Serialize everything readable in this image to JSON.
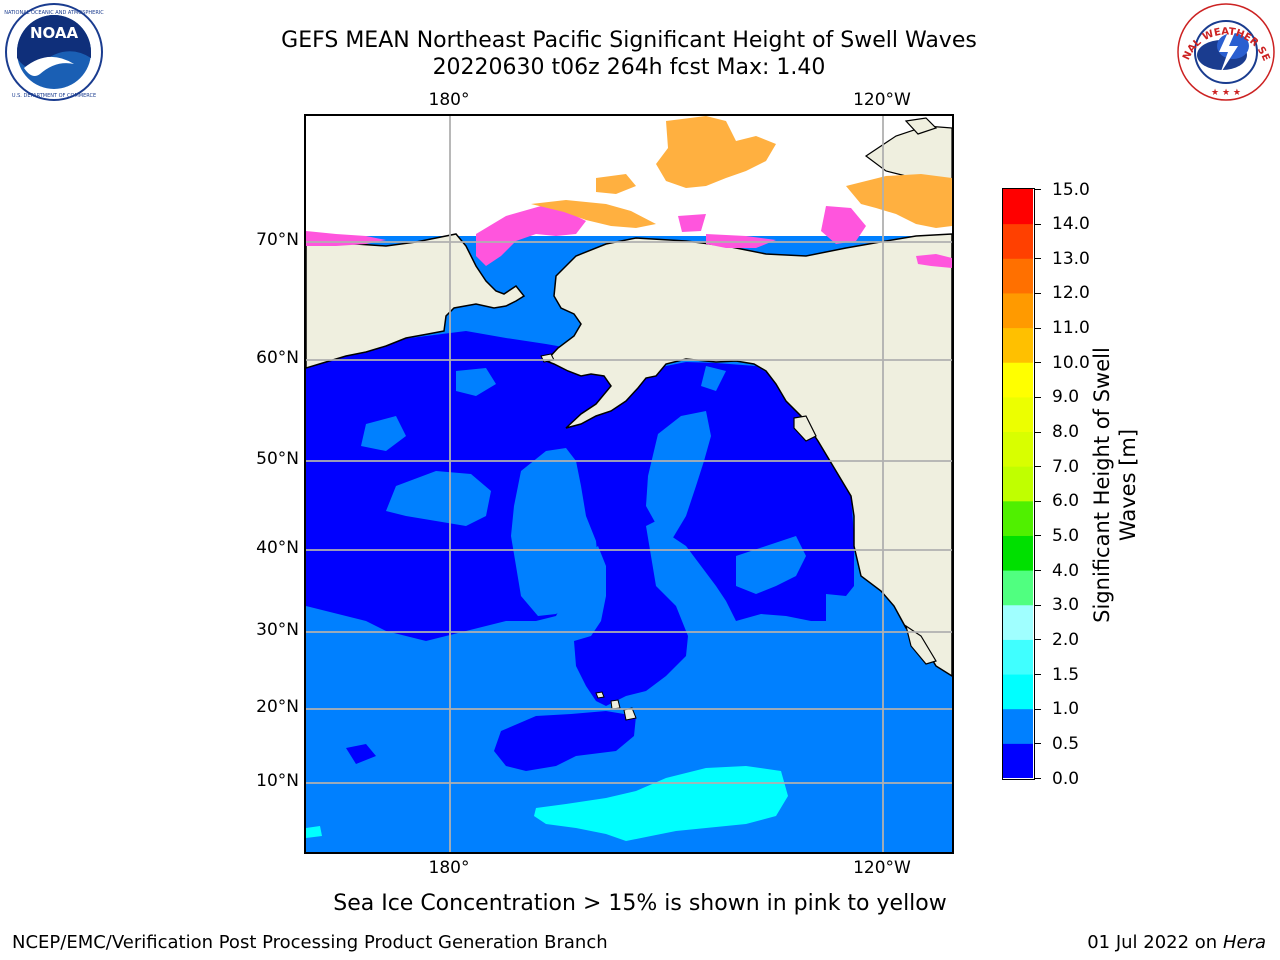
{
  "header": {
    "title_line1": "GEFS MEAN Northeast Pacific Significant Height of Swell Waves",
    "title_line2": "20220630 t06z 264h fcst   Max: 1.40"
  },
  "logos": {
    "left": {
      "text": "NOAA",
      "ring_text": "NATIONAL OCEANIC AND ATMOSPHERIC ADMINISTRATION · U.S. DEPARTMENT OF COMMERCE"
    },
    "right": {
      "ring_text": "NATIONAL WEATHER SERVICE"
    }
  },
  "map": {
    "lon_labels_top": [
      "180°",
      "120°W"
    ],
    "lon_labels_bottom": [
      "180°",
      "120°W"
    ],
    "lat_labels": [
      "70°N",
      "60°N",
      "50°N",
      "40°N",
      "30°N",
      "20°N",
      "10°N"
    ],
    "colors": {
      "land": "#efefdf",
      "ocean_0_0_5": "#0000ff",
      "ocean_0_5_1": "#0080ff",
      "ocean_1_1_5": "#00ffff",
      "ice_pink": "#ff55dd",
      "ice_orange": "#ffb040",
      "grid": "#b0b0b0"
    }
  },
  "colorbar": {
    "label": "Significant Height of Swell Waves [m]",
    "label_line1": "Significant Height of Swell",
    "label_line2": "Waves [m]",
    "ticks": [
      "15.0",
      "14.0",
      "13.0",
      "12.0",
      "11.0",
      "10.0",
      "9.0",
      "8.0",
      "7.0",
      "6.0",
      "5.0",
      "4.0",
      "3.0",
      "2.0",
      "1.5",
      "1.0",
      "0.5",
      "0.0"
    ],
    "levels": [
      {
        "range": "0.0-0.5",
        "color": "#0000ff"
      },
      {
        "range": "0.5-1.0",
        "color": "#0080ff"
      },
      {
        "range": "1.0-1.5",
        "color": "#00ffff"
      },
      {
        "range": "1.5-2.0",
        "color": "#40ffff"
      },
      {
        "range": "2.0-3.0",
        "color": "#a0ffff"
      },
      {
        "range": "3.0-4.0",
        "color": "#50ff80"
      },
      {
        "range": "4.0-5.0",
        "color": "#00e000"
      },
      {
        "range": "5.0-6.0",
        "color": "#50f000"
      },
      {
        "range": "6.0-7.0",
        "color": "#c0ff00"
      },
      {
        "range": "7.0-8.0",
        "color": "#d8ff00"
      },
      {
        "range": "8.0-9.0",
        "color": "#ecff00"
      },
      {
        "range": "9.0-10.0",
        "color": "#ffff00"
      },
      {
        "range": "10.0-11.0",
        "color": "#ffc000"
      },
      {
        "range": "11.0-12.0",
        "color": "#ff9a00"
      },
      {
        "range": "12.0-13.0",
        "color": "#ff7000"
      },
      {
        "range": "13.0-14.0",
        "color": "#ff4000"
      },
      {
        "range": "14.0-15.0",
        "color": "#ff0000"
      }
    ]
  },
  "footer": {
    "caption": "Sea Ice Concentration > 15% is shown in pink to yellow",
    "left": "NCEP/EMC/Verification Post Processing Product Generation Branch",
    "date": "01 Jul 2022 on ",
    "host": "Hera"
  }
}
